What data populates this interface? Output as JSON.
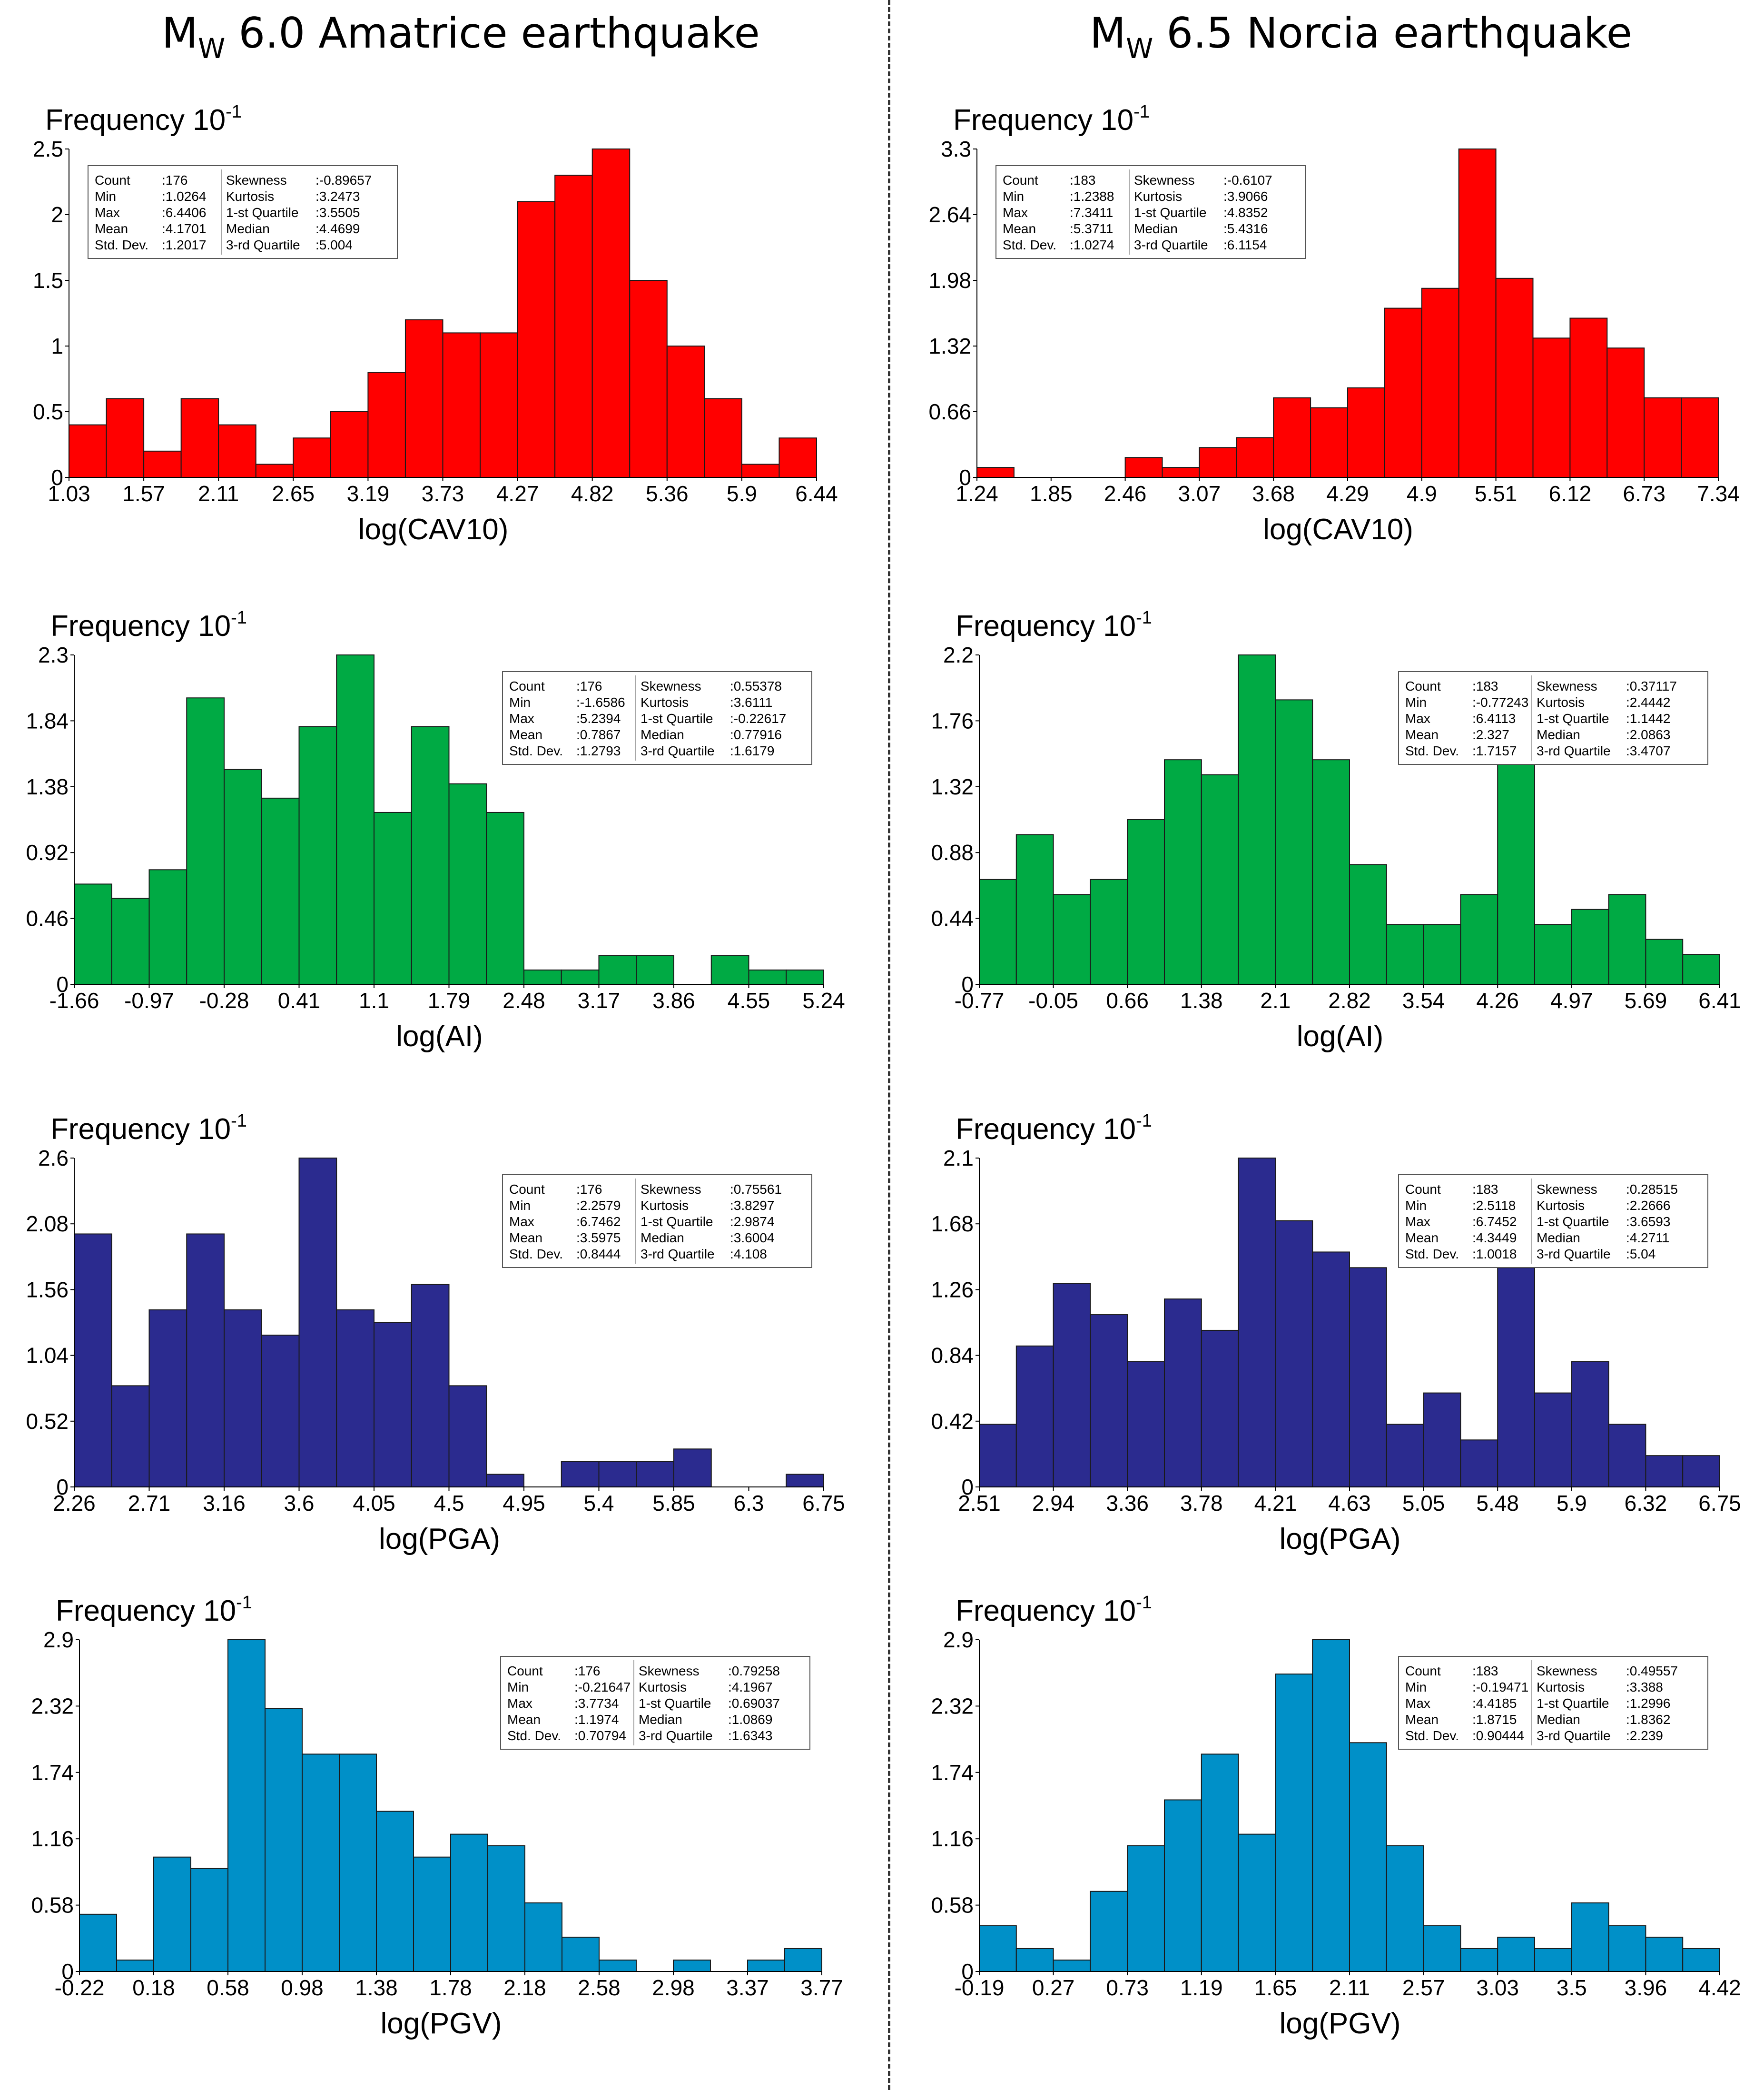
{
  "columns": [
    {
      "mag_prefix": "M",
      "mag_sub": "W",
      "title_rest": " 6.0 Amatrice earthquake"
    },
    {
      "mag_prefix": "M",
      "mag_sub": "W",
      "title_rest": " 6.5 Norcia earthquake"
    }
  ],
  "frequency_label": "Frequency 10",
  "frequency_exp": "-1",
  "stat_labels": [
    "Count",
    "Min",
    "Max",
    "Mean",
    "Std. Dev.",
    "Skewness",
    "Kurtosis",
    "1-st Quartile",
    "Median",
    "3-rd Quartile"
  ],
  "chart_data": [
    {
      "id": "amatrice-cav",
      "type": "bar",
      "color": "#ff0000",
      "xlabel": "log(CAV10)",
      "ylabel": "Frequency 10-1",
      "x_ticks": [
        "1.03",
        "1.57",
        "2.11",
        "2.65",
        "3.19",
        "3.73",
        "4.27",
        "4.82",
        "5.36",
        "5.9",
        "6.44"
      ],
      "y_ticks": [
        "0",
        "0.5",
        "1",
        "1.5",
        "2",
        "2.5"
      ],
      "ylim": [
        0,
        2.5
      ],
      "values": [
        0.4,
        0.6,
        0.2,
        0.6,
        0.4,
        0.1,
        0.3,
        0.5,
        0.8,
        1.2,
        1.1,
        1.1,
        2.1,
        2.3,
        2.5,
        1.5,
        1.0,
        0.6,
        0.1,
        0.3
      ],
      "stats_box": "top-left",
      "stats": [
        "176",
        "1.0264",
        "6.4406",
        "4.1701",
        "1.2017",
        "-0.89657",
        "3.2473",
        "3.5505",
        "4.4699",
        "5.004"
      ]
    },
    {
      "id": "norcia-cav",
      "type": "bar",
      "color": "#ff0000",
      "xlabel": "log(CAV10)",
      "ylabel": "Frequency 10-1",
      "x_ticks": [
        "1.24",
        "1.85",
        "2.46",
        "3.07",
        "3.68",
        "4.29",
        "4.9",
        "5.51",
        "6.12",
        "6.73",
        "7.34"
      ],
      "y_ticks": [
        "0",
        "0.66",
        "1.32",
        "1.98",
        "2.64",
        "3.3"
      ],
      "ylim": [
        0,
        3.3
      ],
      "values": [
        0.1,
        0,
        0,
        0,
        0.2,
        0.1,
        0.3,
        0.4,
        0.8,
        0.7,
        0.9,
        1.7,
        1.9,
        3.3,
        2.0,
        1.4,
        1.6,
        1.3,
        0.8,
        0.8
      ],
      "stats_box": "top-left",
      "stats": [
        "183",
        "1.2388",
        "7.3411",
        "5.3711",
        "1.0274",
        "-0.6107",
        "3.9066",
        "4.8352",
        "5.4316",
        "6.1154"
      ]
    },
    {
      "id": "amatrice-ai",
      "type": "bar",
      "color": "#00aa44",
      "xlabel": "log(AI)",
      "ylabel": "Frequency 10-1",
      "x_ticks": [
        "-1.66",
        "-0.97",
        "-0.28",
        "0.41",
        "1.1",
        "1.79",
        "2.48",
        "3.17",
        "3.86",
        "4.55",
        "5.24"
      ],
      "y_ticks": [
        "0",
        "0.46",
        "0.92",
        "1.38",
        "1.84",
        "2.3"
      ],
      "ylim": [
        0,
        2.3
      ],
      "values": [
        0.7,
        0.6,
        0.8,
        2.0,
        1.5,
        1.3,
        1.8,
        2.3,
        1.2,
        1.8,
        1.4,
        1.2,
        0.1,
        0.1,
        0.2,
        0.2,
        0,
        0.2,
        0.1,
        0.1
      ],
      "stats_box": "top-right",
      "stats": [
        "176",
        "-1.6586",
        "5.2394",
        "0.7867",
        "1.2793",
        "0.55378",
        "3.6111",
        "-0.22617",
        "0.77916",
        "1.6179"
      ]
    },
    {
      "id": "norcia-ai",
      "type": "bar",
      "color": "#00aa44",
      "xlabel": "log(AI)",
      "ylabel": "Frequency 10-1",
      "x_ticks": [
        "-0.77",
        "-0.05",
        "0.66",
        "1.38",
        "2.1",
        "2.82",
        "3.54",
        "4.26",
        "4.97",
        "5.69",
        "6.41"
      ],
      "y_ticks": [
        "0",
        "0.44",
        "0.88",
        "1.32",
        "1.76",
        "2.2"
      ],
      "ylim": [
        0,
        2.2
      ],
      "values": [
        0.7,
        1.0,
        0.6,
        0.7,
        1.1,
        1.5,
        1.4,
        2.2,
        1.9,
        1.5,
        0.8,
        0.4,
        0.4,
        0.6,
        1.5,
        0.4,
        0.5,
        0.6,
        0.3,
        0.2
      ],
      "stats_box": "top-right",
      "stats": [
        "183",
        "-0.77243",
        "6.4113",
        "2.327",
        "1.7157",
        "0.37117",
        "2.4442",
        "1.1442",
        "2.0863",
        "3.4707"
      ]
    },
    {
      "id": "amatrice-pga",
      "type": "bar",
      "color": "#2b2b8f",
      "xlabel": "log(PGA)",
      "ylabel": "Frequency 10-1",
      "x_ticks": [
        "2.26",
        "2.71",
        "3.16",
        "3.6",
        "4.05",
        "4.5",
        "4.95",
        "5.4",
        "5.85",
        "6.3",
        "6.75"
      ],
      "y_ticks": [
        "0",
        "0.52",
        "1.04",
        "1.56",
        "2.08",
        "2.6"
      ],
      "ylim": [
        0,
        2.6
      ],
      "values": [
        2.0,
        0.8,
        1.4,
        2.0,
        1.4,
        1.2,
        2.6,
        1.4,
        1.3,
        1.6,
        0.8,
        0.1,
        0,
        0.2,
        0.2,
        0.2,
        0.3,
        0,
        0,
        0.1
      ],
      "stats_box": "top-right",
      "stats": [
        "176",
        "2.2579",
        "6.7462",
        "3.5975",
        "0.8444",
        "0.75561",
        "3.8297",
        "2.9874",
        "3.6004",
        "4.108"
      ]
    },
    {
      "id": "norcia-pga",
      "type": "bar",
      "color": "#2b2b8f",
      "xlabel": "log(PGA)",
      "ylabel": "Frequency 10-1",
      "x_ticks": [
        "2.51",
        "2.94",
        "3.36",
        "3.78",
        "4.21",
        "4.63",
        "5.05",
        "5.48",
        "5.9",
        "6.32",
        "6.75"
      ],
      "y_ticks": [
        "0",
        "0.42",
        "0.84",
        "1.26",
        "1.68",
        "2.1"
      ],
      "ylim": [
        0,
        2.1
      ],
      "values": [
        0.4,
        0.9,
        1.3,
        1.1,
        0.8,
        1.2,
        1.0,
        2.1,
        1.7,
        1.5,
        1.4,
        0.4,
        0.6,
        0.3,
        1.4,
        0.6,
        0.8,
        0.4,
        0.2,
        0.2
      ],
      "stats_box": "top-right",
      "stats": [
        "183",
        "2.5118",
        "6.7452",
        "4.3449",
        "1.0018",
        "0.28515",
        "2.2666",
        "3.6593",
        "4.2711",
        "5.04"
      ]
    },
    {
      "id": "amatrice-pgv",
      "type": "bar",
      "color": "#0090c8",
      "xlabel": "log(PGV)",
      "ylabel": "Frequency 10-1",
      "x_ticks": [
        "-0.22",
        "0.18",
        "0.58",
        "0.98",
        "1.38",
        "1.78",
        "2.18",
        "2.58",
        "2.98",
        "3.37",
        "3.77"
      ],
      "y_ticks": [
        "0",
        "0.58",
        "1.16",
        "1.74",
        "2.32",
        "2.9"
      ],
      "ylim": [
        0,
        2.9
      ],
      "values": [
        0.5,
        0.1,
        1.0,
        0.9,
        2.9,
        2.3,
        1.9,
        1.9,
        1.4,
        1.0,
        1.2,
        1.1,
        0.6,
        0.3,
        0.1,
        0,
        0.1,
        0,
        0.1,
        0.2
      ],
      "stats_box": "top-right",
      "stats": [
        "176",
        "-0.21647",
        "3.7734",
        "1.1974",
        "0.70794",
        "0.79258",
        "4.1967",
        "0.69037",
        "1.0869",
        "1.6343"
      ]
    },
    {
      "id": "norcia-pgv",
      "type": "bar",
      "color": "#0090c8",
      "xlabel": "log(PGV)",
      "ylabel": "Frequency 10-1",
      "x_ticks": [
        "-0.19",
        "0.27",
        "0.73",
        "1.19",
        "1.65",
        "2.11",
        "2.57",
        "3.03",
        "3.5",
        "3.96",
        "4.42"
      ],
      "y_ticks": [
        "0",
        "0.58",
        "1.16",
        "1.74",
        "2.32",
        "2.9"
      ],
      "ylim": [
        0,
        2.9
      ],
      "values": [
        0.4,
        0.2,
        0.1,
        0.7,
        1.1,
        1.5,
        1.9,
        1.2,
        2.6,
        2.9,
        2.0,
        1.1,
        0.4,
        0.2,
        0.3,
        0.2,
        0.6,
        0.4,
        0.3,
        0.2
      ],
      "stats_box": "top-right",
      "stats": [
        "183",
        "-0.19471",
        "4.4185",
        "1.8715",
        "0.90444",
        "0.49557",
        "3.388",
        "1.2996",
        "1.8362",
        "2.239"
      ]
    }
  ]
}
